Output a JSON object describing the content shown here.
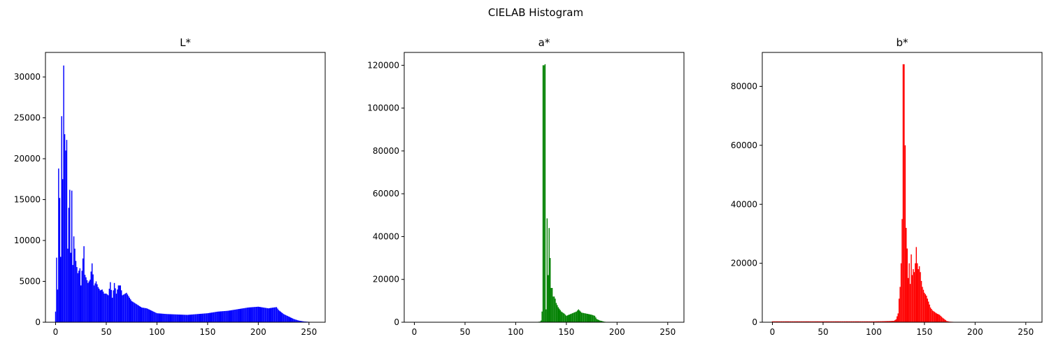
{
  "figure": {
    "suptitle": "CIELAB Histogram"
  },
  "chart_data": [
    {
      "type": "bar",
      "title": "L*",
      "color": "#0000ff",
      "xlim": [
        -10,
        266
      ],
      "ylim": [
        0,
        33000
      ],
      "xticks": [
        0,
        50,
        100,
        150,
        200,
        250
      ],
      "yticks": [
        0,
        5000,
        10000,
        15000,
        20000,
        25000,
        30000
      ],
      "grid": false,
      "anchors": [
        [
          0,
          1300
        ],
        [
          1,
          7900
        ],
        [
          2,
          4000
        ],
        [
          3,
          18800
        ],
        [
          4,
          15200
        ],
        [
          5,
          8000
        ],
        [
          6,
          25200
        ],
        [
          7,
          17500
        ],
        [
          8,
          31400
        ],
        [
          9,
          23000
        ],
        [
          10,
          21000
        ],
        [
          11,
          22300
        ],
        [
          12,
          9000
        ],
        [
          13,
          14000
        ],
        [
          14,
          16200
        ],
        [
          15,
          8500
        ],
        [
          16,
          16100
        ],
        [
          17,
          7000
        ],
        [
          18,
          10500
        ],
        [
          20,
          7500
        ],
        [
          22,
          6000
        ],
        [
          24,
          6600
        ],
        [
          25,
          4500
        ],
        [
          26,
          6300
        ],
        [
          28,
          9300
        ],
        [
          29,
          5800
        ],
        [
          30,
          5500
        ],
        [
          32,
          4800
        ],
        [
          34,
          5200
        ],
        [
          36,
          7200
        ],
        [
          38,
          4500
        ],
        [
          40,
          5000
        ],
        [
          42,
          4300
        ],
        [
          44,
          3900
        ],
        [
          46,
          4000
        ],
        [
          48,
          3500
        ],
        [
          50,
          3500
        ],
        [
          52,
          3300
        ],
        [
          54,
          4900
        ],
        [
          56,
          3000
        ],
        [
          58,
          4800
        ],
        [
          60,
          3500
        ],
        [
          62,
          4500
        ],
        [
          64,
          4500
        ],
        [
          66,
          3300
        ],
        [
          70,
          3600
        ],
        [
          75,
          2600
        ],
        [
          80,
          2200
        ],
        [
          85,
          1800
        ],
        [
          90,
          1700
        ],
        [
          95,
          1400
        ],
        [
          100,
          1100
        ],
        [
          110,
          1000
        ],
        [
          120,
          950
        ],
        [
          130,
          900
        ],
        [
          140,
          1000
        ],
        [
          150,
          1100
        ],
        [
          160,
          1300
        ],
        [
          170,
          1400
        ],
        [
          180,
          1600
        ],
        [
          190,
          1800
        ],
        [
          200,
          1900
        ],
        [
          205,
          1800
        ],
        [
          210,
          1700
        ],
        [
          215,
          1800
        ],
        [
          218,
          1850
        ],
        [
          220,
          1500
        ],
        [
          225,
          1000
        ],
        [
          230,
          700
        ],
        [
          235,
          400
        ],
        [
          240,
          200
        ],
        [
          245,
          100
        ],
        [
          250,
          50
        ],
        [
          255,
          10
        ]
      ]
    },
    {
      "type": "bar",
      "title": "a*",
      "color": "#008000",
      "xlim": [
        -10,
        266
      ],
      "ylim": [
        0,
        126000
      ],
      "xticks": [
        0,
        50,
        100,
        150,
        200,
        250
      ],
      "yticks": [
        0,
        20000,
        40000,
        60000,
        80000,
        100000,
        120000
      ],
      "grid": false,
      "anchors": [
        [
          0,
          0
        ],
        [
          100,
          0
        ],
        [
          120,
          50
        ],
        [
          124,
          300
        ],
        [
          125,
          800
        ],
        [
          126,
          5000
        ],
        [
          127,
          120000
        ],
        [
          128,
          120000
        ],
        [
          129,
          120500
        ],
        [
          130,
          6000
        ],
        [
          131,
          48500
        ],
        [
          132,
          22000
        ],
        [
          133,
          44000
        ],
        [
          134,
          30000
        ],
        [
          135,
          16000
        ],
        [
          136,
          16000
        ],
        [
          137,
          12000
        ],
        [
          138,
          12000
        ],
        [
          139,
          11000
        ],
        [
          140,
          9000
        ],
        [
          142,
          7000
        ],
        [
          145,
          5000
        ],
        [
          148,
          4000
        ],
        [
          150,
          3000
        ],
        [
          155,
          4000
        ],
        [
          160,
          5000
        ],
        [
          162,
          6000
        ],
        [
          165,
          4500
        ],
        [
          170,
          4000
        ],
        [
          175,
          3500
        ],
        [
          178,
          3000
        ],
        [
          180,
          1500
        ],
        [
          183,
          800
        ],
        [
          185,
          600
        ],
        [
          187,
          300
        ],
        [
          190,
          100
        ],
        [
          195,
          20
        ],
        [
          200,
          0
        ],
        [
          255,
          0
        ]
      ]
    },
    {
      "type": "bar",
      "title": "b*",
      "color": "#ff0000",
      "xlim": [
        -10,
        266
      ],
      "ylim": [
        0,
        91500
      ],
      "xticks": [
        0,
        50,
        100,
        150,
        200,
        250
      ],
      "yticks": [
        0,
        20000,
        40000,
        60000,
        80000
      ],
      "grid": false,
      "anchors": [
        [
          0,
          300
        ],
        [
          100,
          300
        ],
        [
          115,
          400
        ],
        [
          120,
          500
        ],
        [
          122,
          1000
        ],
        [
          124,
          3000
        ],
        [
          125,
          8000
        ],
        [
          126,
          12000
        ],
        [
          127,
          20000
        ],
        [
          128,
          35000
        ],
        [
          129,
          87500
        ],
        [
          130,
          87500
        ],
        [
          131,
          60000
        ],
        [
          132,
          32000
        ],
        [
          133,
          25000
        ],
        [
          134,
          15000
        ],
        [
          135,
          20000
        ],
        [
          136,
          13000
        ],
        [
          137,
          23000
        ],
        [
          138,
          16000
        ],
        [
          139,
          18000
        ],
        [
          140,
          17000
        ],
        [
          141,
          20000
        ],
        [
          142,
          25500
        ],
        [
          143,
          20000
        ],
        [
          144,
          18000
        ],
        [
          145,
          19000
        ],
        [
          146,
          17000
        ],
        [
          147,
          14000
        ],
        [
          148,
          12000
        ],
        [
          150,
          10000
        ],
        [
          152,
          9000
        ],
        [
          154,
          7000
        ],
        [
          156,
          5000
        ],
        [
          158,
          4000
        ],
        [
          160,
          3500
        ],
        [
          162,
          3000
        ],
        [
          165,
          2500
        ],
        [
          168,
          1500
        ],
        [
          170,
          1000
        ],
        [
          172,
          400
        ],
        [
          175,
          200
        ],
        [
          180,
          100
        ],
        [
          190,
          0
        ],
        [
          255,
          0
        ]
      ]
    }
  ]
}
